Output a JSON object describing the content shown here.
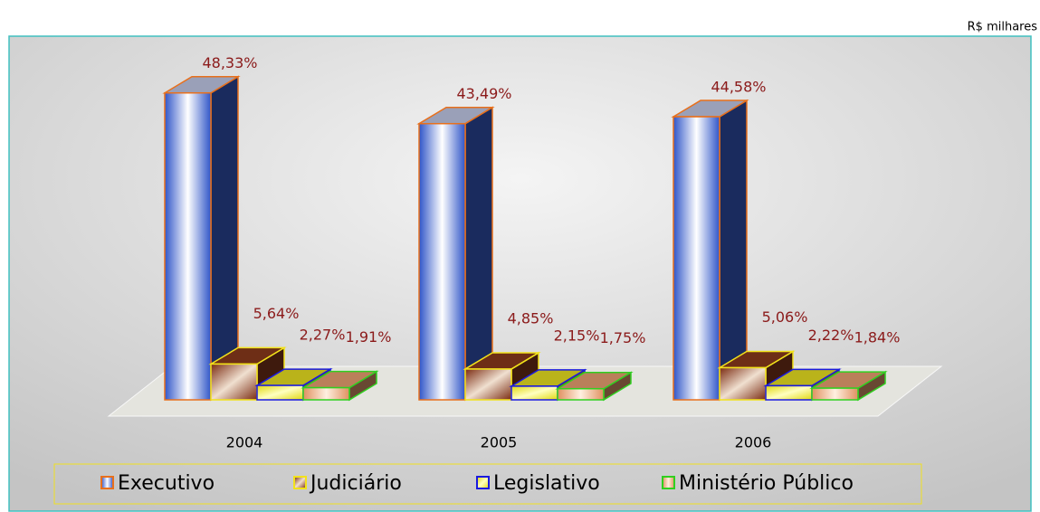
{
  "chart_data": {
    "type": "bar3d",
    "annotation": "R$ milhares",
    "categories": [
      "2004",
      "2005",
      "2006"
    ],
    "ylim": [
      0,
      50
    ],
    "legend": "bottom",
    "series": [
      {
        "name": "Executivo",
        "color": "#3a5fd0",
        "border": "#e8701c",
        "values": [
          48.33,
          43.49,
          44.58
        ],
        "value_labels": [
          "48,33%",
          "43,49%",
          "44,58%"
        ]
      },
      {
        "name": "Judiciário",
        "color": "#8a3a1c",
        "border": "#f2e21a",
        "values": [
          5.64,
          4.85,
          5.06
        ],
        "value_labels": [
          "5,64%",
          "4,85%",
          "5,06%"
        ]
      },
      {
        "name": "Legislativo",
        "color": "#e8e020",
        "border": "#1a1ae0",
        "values": [
          2.27,
          2.15,
          2.22
        ],
        "value_labels": [
          "2,27%",
          "2,15%",
          "2,22%"
        ]
      },
      {
        "name": "Ministério Público",
        "color": "#e8a070",
        "border": "#30d020",
        "values": [
          1.91,
          1.75,
          1.84
        ],
        "value_labels": [
          "1,91%",
          "1,75%",
          "1,84%"
        ]
      }
    ]
  }
}
